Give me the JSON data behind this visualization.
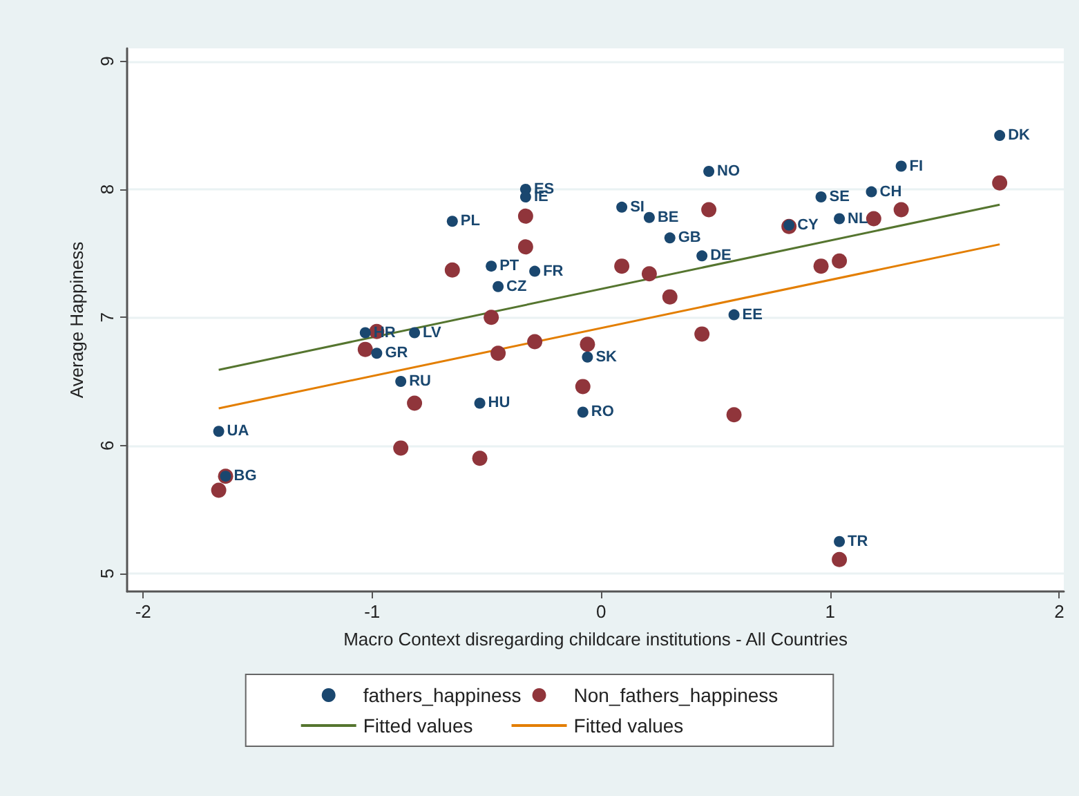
{
  "chart_data": {
    "type": "scatter",
    "xlabel": "Macro Context disregarding childcare institutions - All Countries",
    "ylabel": "Average Happiness",
    "xlim": [
      -2.07,
      2.02
    ],
    "xticks": [
      -2,
      -1,
      0,
      1,
      2
    ],
    "ylim": [
      4.86,
      9.1
    ],
    "yticks": [
      5,
      6,
      7,
      8,
      9
    ],
    "grid": "y",
    "legend": "bottom",
    "marker": "circle",
    "series": [
      {
        "name": "fathers_happiness",
        "color": "#1a476f",
        "x": [
          -1.67,
          -1.64,
          -1.03,
          -0.815,
          -0.98,
          -0.875,
          -0.53,
          -0.65,
          -0.33,
          -0.33,
          -0.48,
          -0.29,
          -0.45,
          -0.06,
          -0.08,
          0.09,
          0.21,
          0.3,
          0.44,
          0.47,
          0.58,
          0.82,
          0.96,
          1.04,
          1.18,
          1.31,
          1.74,
          1.04
        ],
        "values": [
          6.11,
          5.76,
          6.88,
          6.88,
          6.72,
          6.5,
          6.33,
          7.75,
          8.0,
          7.94,
          7.4,
          7.36,
          7.24,
          6.69,
          6.26,
          7.86,
          7.78,
          7.62,
          7.48,
          8.14,
          7.02,
          7.72,
          7.94,
          7.77,
          7.98,
          8.18,
          8.42,
          5.25
        ],
        "value_labels": [
          "UA",
          "BG",
          "HR",
          "LV",
          "GR",
          "RU",
          "HU",
          "PL",
          "ES",
          "IE",
          "PT",
          "FR",
          "CZ",
          "SK",
          "RO",
          "SI",
          "BE",
          "GB",
          "DE",
          "NO",
          "EE",
          "CY",
          "SE",
          "NL",
          "CH",
          "FI",
          "DK",
          "TR"
        ]
      },
      {
        "name": "Non_fathers_happiness",
        "color": "#90353b",
        "x": [
          -1.67,
          -1.64,
          -0.98,
          -0.815,
          -1.03,
          -0.875,
          -0.53,
          -0.65,
          -0.33,
          -0.33,
          -0.48,
          -0.29,
          -0.45,
          -0.06,
          -0.08,
          0.09,
          0.21,
          0.3,
          0.44,
          0.47,
          0.58,
          0.82,
          0.96,
          1.04,
          1.19,
          1.31,
          1.74,
          1.04
        ],
        "values": [
          5.65,
          5.76,
          6.89,
          6.33,
          6.75,
          5.98,
          5.9,
          7.37,
          7.79,
          7.55,
          7.0,
          6.81,
          6.72,
          6.79,
          6.46,
          7.4,
          7.34,
          7.16,
          6.87,
          7.84,
          6.24,
          7.71,
          7.4,
          7.44,
          7.77,
          7.84,
          8.05,
          5.11
        ]
      },
      {
        "name": "Fitted values",
        "type": "line",
        "marker": "none",
        "color": "#55752f",
        "x": [
          -1.67,
          1.74
        ],
        "values": [
          6.59,
          7.88
        ]
      },
      {
        "name": "Fitted values",
        "type": "line",
        "marker": "none",
        "color": "#e37e00",
        "x": [
          -1.67,
          1.74
        ],
        "values": [
          6.29,
          7.57
        ]
      }
    ]
  }
}
